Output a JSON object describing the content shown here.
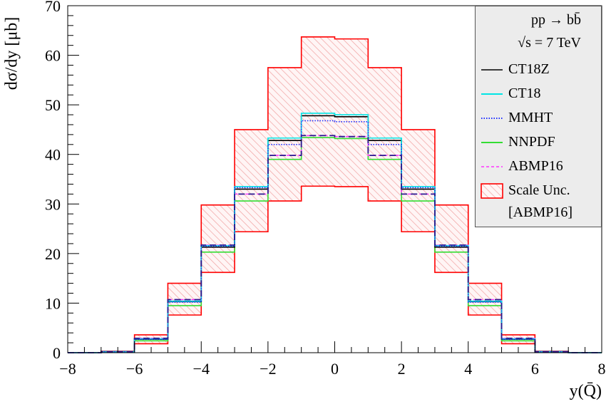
{
  "chart_data": {
    "type": "line",
    "xlabel": "y(Q̄)",
    "ylabel": "dσ/dy [μb]",
    "xlim": [
      -8,
      8
    ],
    "ylim": [
      0,
      70
    ],
    "x_ticks": [
      -8,
      -6,
      -4,
      -2,
      0,
      2,
      4,
      6,
      8
    ],
    "y_ticks": [
      0,
      10,
      20,
      30,
      40,
      50,
      60,
      70
    ],
    "bin_edges": [
      -8,
      -7,
      -6,
      -5,
      -4,
      -3,
      -2,
      -1,
      0,
      1,
      2,
      3,
      4,
      5,
      6,
      7,
      8
    ],
    "legend_header": [
      "pp → bb̄",
      "√s = 7 TeV"
    ],
    "series": [
      {
        "name": "CT18Z",
        "color": "#000000",
        "dash": "solid",
        "values": [
          0,
          0.2,
          2.7,
          10.3,
          21.3,
          33.0,
          42.8,
          47.8,
          47.6,
          42.8,
          33.0,
          21.3,
          10.3,
          2.7,
          0.2,
          0
        ]
      },
      {
        "name": "CT18",
        "color": "#00e5e5",
        "dash": "solid",
        "values": [
          0,
          0.2,
          2.8,
          10.4,
          21.6,
          33.5,
          43.3,
          48.3,
          48.0,
          43.3,
          33.5,
          21.6,
          10.4,
          2.8,
          0.2,
          0
        ]
      },
      {
        "name": "MMHT",
        "color": "#2030ff",
        "dash": "dotted",
        "values": [
          0,
          0.2,
          2.7,
          10.2,
          21.5,
          33.3,
          42.0,
          46.8,
          46.6,
          42.0,
          33.3,
          21.5,
          10.2,
          2.7,
          0.2,
          0
        ]
      },
      {
        "name": "NNPDF",
        "color": "#33dd33",
        "dash": "solid",
        "values": [
          0,
          0.2,
          2.4,
          9.5,
          20.3,
          30.6,
          39.0,
          43.4,
          43.2,
          39.0,
          30.6,
          20.3,
          9.5,
          2.4,
          0.2,
          0
        ]
      },
      {
        "name": "ABMP16",
        "color": "#ff33ff",
        "dash": "dashed",
        "values": [
          0,
          0.2,
          2.9,
          10.7,
          21.7,
          32.0,
          39.8,
          43.8,
          43.6,
          39.8,
          32.0,
          21.7,
          10.7,
          2.9,
          0.2,
          0
        ]
      }
    ],
    "central_dashed_color": "#2a1a90",
    "band": {
      "name": "Scale Unc.",
      "note": "[ABMP16]",
      "color": "#ff0000",
      "upper": [
        0,
        0.3,
        3.6,
        14.0,
        29.8,
        45.0,
        57.5,
        63.7,
        63.3,
        57.5,
        45.0,
        29.8,
        14.0,
        3.6,
        0.3,
        0
      ],
      "lower": [
        0,
        0.1,
        1.8,
        7.6,
        16.2,
        24.4,
        30.6,
        33.6,
        33.5,
        30.6,
        24.4,
        16.2,
        7.6,
        1.8,
        0.1,
        0
      ]
    }
  }
}
